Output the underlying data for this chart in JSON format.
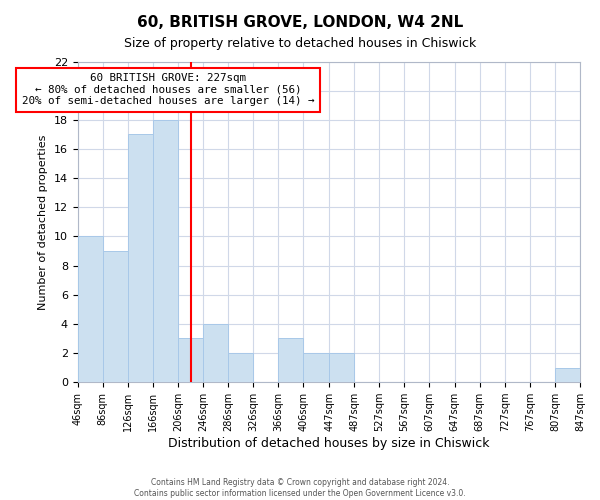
{
  "title": "60, BRITISH GROVE, LONDON, W4 2NL",
  "subtitle": "Size of property relative to detached houses in Chiswick",
  "xlabel": "Distribution of detached houses by size in Chiswick",
  "ylabel": "Number of detached properties",
  "bin_edges": [
    46,
    86,
    126,
    166,
    206,
    246,
    286,
    326,
    366,
    406,
    447,
    487,
    527,
    567,
    607,
    647,
    687,
    727,
    767,
    807,
    847
  ],
  "bar_heights": [
    10,
    9,
    17,
    18,
    3,
    4,
    2,
    0,
    3,
    2,
    2,
    0,
    0,
    0,
    0,
    0,
    0,
    0,
    0,
    1
  ],
  "bar_color": "#cce0f0",
  "bar_edgecolor": "#a8c8e8",
  "vline_x": 227,
  "vline_color": "red",
  "annotation_title": "60 BRITISH GROVE: 227sqm",
  "annotation_line1": "← 80% of detached houses are smaller (56)",
  "annotation_line2": "20% of semi-detached houses are larger (14) →",
  "annotation_box_edgecolor": "red",
  "ylim": [
    0,
    22
  ],
  "yticks": [
    0,
    2,
    4,
    6,
    8,
    10,
    12,
    14,
    16,
    18,
    20,
    22
  ],
  "footer_line1": "Contains HM Land Registry data © Crown copyright and database right 2024.",
  "footer_line2": "Contains public sector information licensed under the Open Government Licence v3.0.",
  "background_color": "#ffffff",
  "grid_color": "#d0d8e8"
}
